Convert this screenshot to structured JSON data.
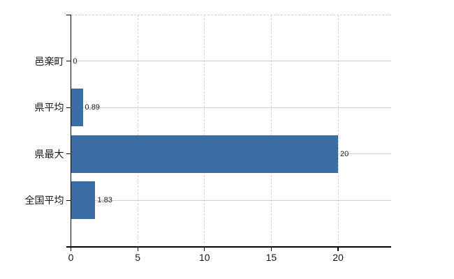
{
  "chart": {
    "background_color": "#ffffff",
    "bar_color": "#3a6ca6",
    "axis_color": "#000000",
    "horizontal_grid_color": "#ccd5cc",
    "vertical_grid_color": "#d8d8d8",
    "text_color": "#1a1a1a"
  },
  "chart_data": {
    "type": "bar",
    "orientation": "horizontal",
    "title": "",
    "xlabel": "",
    "ylabel": "",
    "categories": [
      "邑楽町",
      "県平均",
      "県最大",
      "全国平均"
    ],
    "values": [
      0,
      0.89,
      20,
      1.83
    ],
    "value_labels": [
      "0",
      "0.89",
      "20",
      "1.83"
    ],
    "xticks": [
      0,
      5,
      10,
      15,
      20
    ],
    "xtick_labels": [
      "0",
      "5",
      "10",
      "15",
      "20"
    ],
    "xlim": [
      0,
      24
    ],
    "grid": true,
    "legend": false
  }
}
